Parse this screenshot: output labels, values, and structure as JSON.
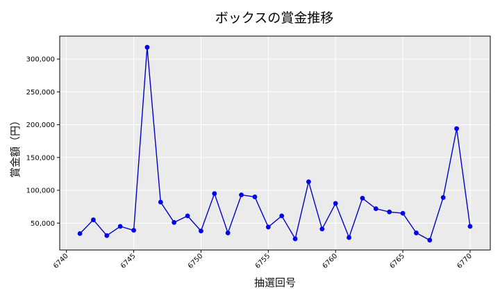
{
  "chart_data": {
    "type": "line",
    "title": "ボックスの賞金推移",
    "xlabel": "抽選回号",
    "ylabel": "賞金額（円）",
    "xlim": [
      6739.5,
      6771.5
    ],
    "ylim": [
      9000,
      335000
    ],
    "x_ticks": [
      6740,
      6745,
      6750,
      6755,
      6760,
      6765,
      6770
    ],
    "y_ticks": [
      50000,
      100000,
      150000,
      200000,
      250000,
      300000
    ],
    "y_tick_labels": [
      "50,000",
      "100,000",
      "150,000",
      "200,000",
      "250,000",
      "300,000"
    ],
    "grid": true,
    "series": [
      {
        "color": "#0000cc",
        "marker_color": "#0000ee",
        "x": [
          6741,
          6742,
          6743,
          6744,
          6745,
          6746,
          6747,
          6748,
          6749,
          6750,
          6751,
          6752,
          6753,
          6754,
          6755,
          6756,
          6757,
          6758,
          6759,
          6760,
          6761,
          6762,
          6763,
          6764,
          6765,
          6766,
          6767,
          6768,
          6769,
          6770
        ],
        "values": [
          34000,
          55000,
          31000,
          45000,
          39000,
          318000,
          82000,
          51000,
          61000,
          38000,
          95000,
          35000,
          93000,
          90000,
          44000,
          61000,
          26000,
          113000,
          41000,
          80000,
          28000,
          88000,
          72000,
          67000,
          65000,
          35000,
          24000,
          89000,
          194000,
          45000
        ]
      }
    ]
  }
}
